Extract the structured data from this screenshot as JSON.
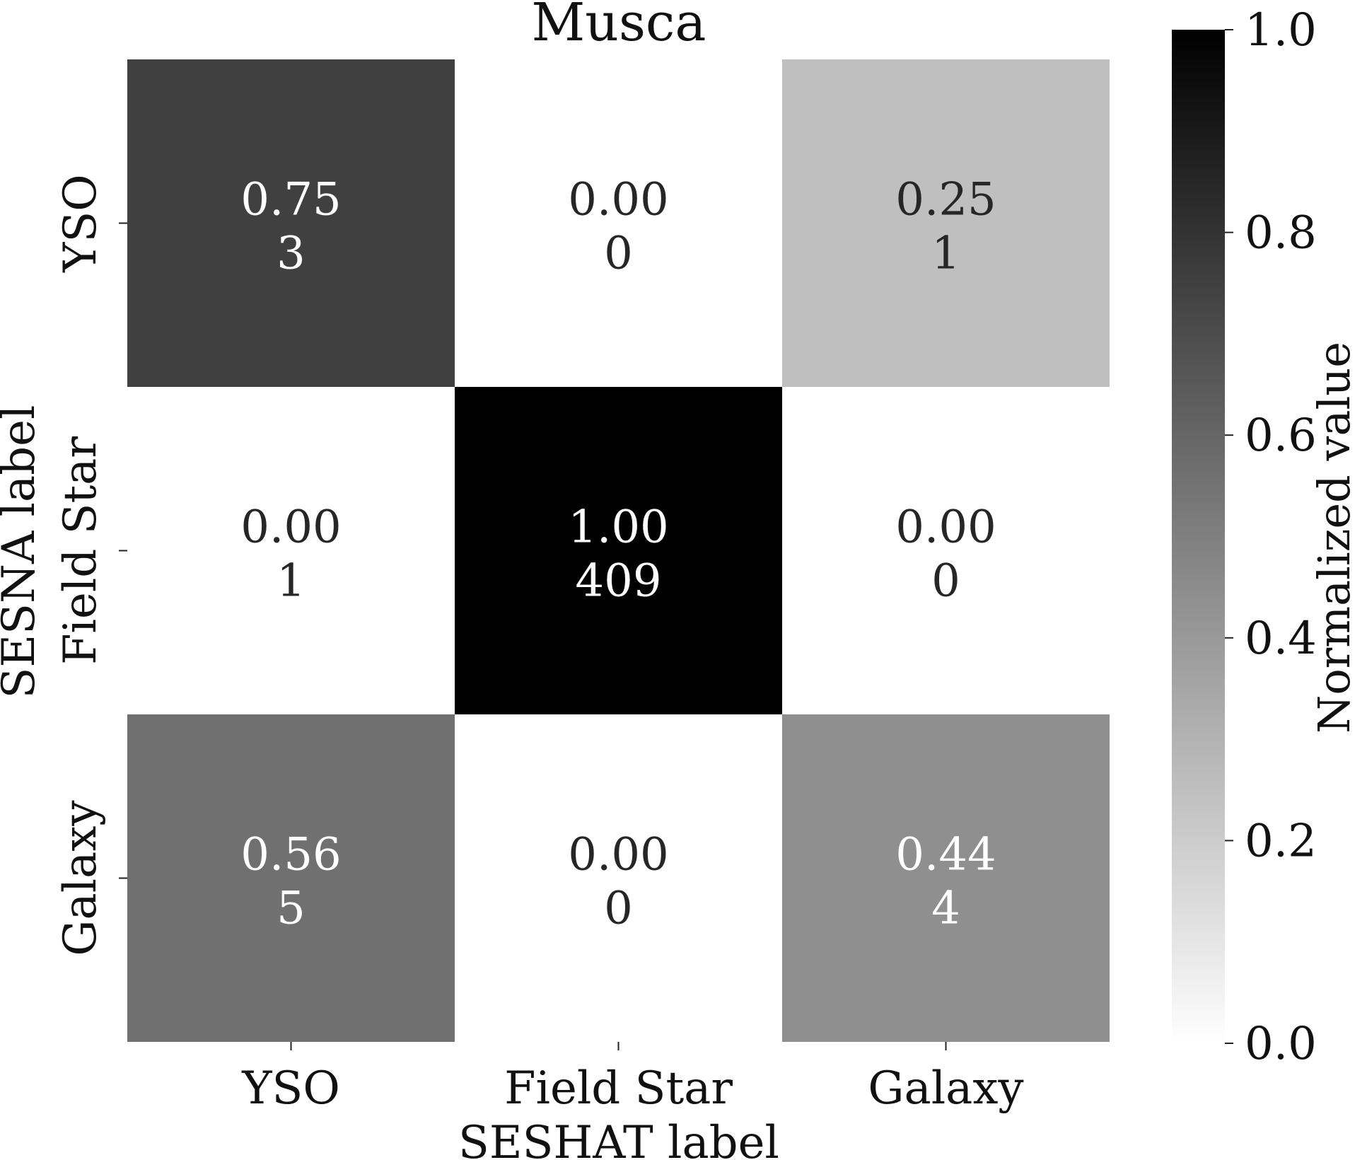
{
  "chart_data": {
    "type": "heatmap",
    "title": "Musca",
    "xlabel": "SESHAT label",
    "ylabel": "SESNA label",
    "x_categories": [
      "YSO",
      "Field Star",
      "Galaxy"
    ],
    "y_categories": [
      "YSO",
      "Field Star",
      "Galaxy"
    ],
    "cells": [
      {
        "row": "YSO",
        "col": "YSO",
        "normalized": "0.75",
        "count": "3",
        "value": 0.75
      },
      {
        "row": "YSO",
        "col": "Field Star",
        "normalized": "0.00",
        "count": "0",
        "value": 0.0
      },
      {
        "row": "YSO",
        "col": "Galaxy",
        "normalized": "0.25",
        "count": "1",
        "value": 0.25
      },
      {
        "row": "Field Star",
        "col": "YSO",
        "normalized": "0.00",
        "count": "1",
        "value": 0.0
      },
      {
        "row": "Field Star",
        "col": "Field Star",
        "normalized": "1.00",
        "count": "409",
        "value": 1.0
      },
      {
        "row": "Field Star",
        "col": "Galaxy",
        "normalized": "0.00",
        "count": "0",
        "value": 0.0
      },
      {
        "row": "Galaxy",
        "col": "YSO",
        "normalized": "0.56",
        "count": "5",
        "value": 0.56
      },
      {
        "row": "Galaxy",
        "col": "Field Star",
        "normalized": "0.00",
        "count": "0",
        "value": 0.0
      },
      {
        "row": "Galaxy",
        "col": "Galaxy",
        "normalized": "0.44",
        "count": "4",
        "value": 0.44
      }
    ],
    "colorbar": {
      "label": "Normalized value",
      "range": [
        0.0,
        1.0
      ],
      "ticks": [
        "0.0",
        "0.2",
        "0.4",
        "0.6",
        "0.8",
        "1.0"
      ],
      "colormap": "white-to-black",
      "low_color": "#ffffff",
      "high_color": "#000000"
    }
  }
}
